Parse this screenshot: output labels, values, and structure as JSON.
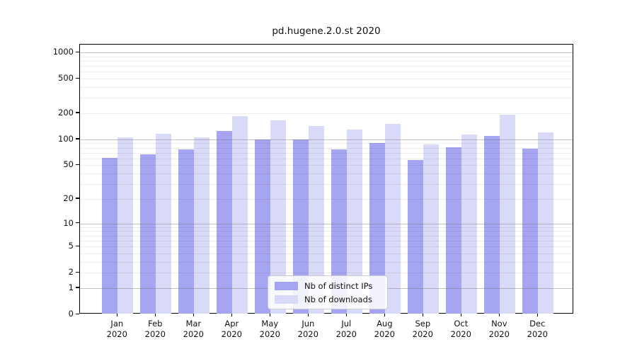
{
  "chart_data": {
    "type": "bar",
    "title": "pd.hugene.2.0.st 2020",
    "categories": [
      "Jan 2020",
      "Feb 2020",
      "Mar 2020",
      "Apr 2020",
      "May 2020",
      "Jun 2020",
      "Jul 2020",
      "Aug 2020",
      "Sep 2020",
      "Oct 2020",
      "Nov 2020",
      "Dec 2020"
    ],
    "series": [
      {
        "name": "Nb of distinct IPs",
        "color": "#a5a5f2",
        "values": [
          61,
          67,
          77,
          125,
          100,
          100,
          77,
          90,
          58,
          81,
          110,
          78
        ]
      },
      {
        "name": "Nb of downloads",
        "color": "#d9d9f8",
        "values": [
          105,
          116,
          105,
          185,
          165,
          142,
          130,
          152,
          87,
          113,
          191,
          120
        ]
      }
    ],
    "xlabel": "",
    "ylabel": "",
    "yscale": "log1p",
    "ylim": [
      0,
      1222
    ],
    "ytick_labels": [
      0,
      1,
      2,
      5,
      10,
      20,
      50,
      100,
      200,
      500,
      1000
    ],
    "major_gridlines": [
      1,
      10,
      100,
      1000
    ],
    "grid": true,
    "legend_position": "lower center"
  }
}
